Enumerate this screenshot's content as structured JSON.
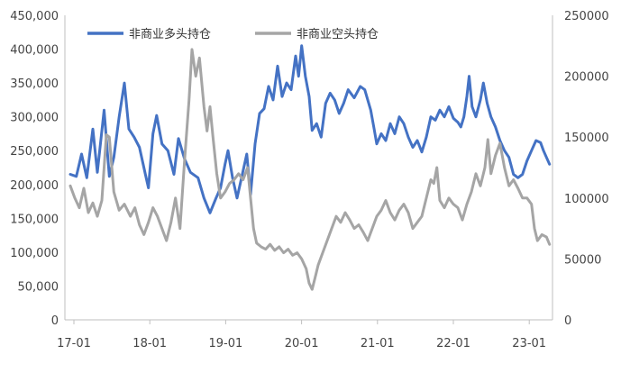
{
  "chart_data": {
    "type": "line",
    "title": "",
    "xlabel": "",
    "x_ticks": [
      "17-01",
      "18-01",
      "19-01",
      "20-01",
      "21-01",
      "22-01",
      "23-01"
    ],
    "left_axis": {
      "range": [
        0,
        450000
      ],
      "ticks": [
        "0",
        "50,000",
        "100,000",
        "150,000",
        "200,000",
        "250,000",
        "300,000",
        "350,000",
        "400,000",
        "450,000"
      ]
    },
    "right_axis": {
      "range": [
        0,
        250000
      ],
      "ticks": [
        "0",
        "50000",
        "100000",
        "150000",
        "200000",
        "250000"
      ]
    },
    "legend_position": "top-left",
    "grid": false,
    "series": [
      {
        "name": "非商业多头持仓",
        "axis": "left",
        "color": "#4472C4",
        "points": [
          [
            2017.0,
            215000
          ],
          [
            2017.08,
            212000
          ],
          [
            2017.15,
            245000
          ],
          [
            2017.22,
            210000
          ],
          [
            2017.3,
            282000
          ],
          [
            2017.36,
            218000
          ],
          [
            2017.45,
            310000
          ],
          [
            2017.52,
            212000
          ],
          [
            2017.58,
            240000
          ],
          [
            2017.65,
            300000
          ],
          [
            2017.72,
            350000
          ],
          [
            2017.78,
            282000
          ],
          [
            2017.85,
            270000
          ],
          [
            2017.92,
            255000
          ],
          [
            2018.0,
            215000
          ],
          [
            2018.04,
            195000
          ],
          [
            2018.1,
            275000
          ],
          [
            2018.15,
            302000
          ],
          [
            2018.22,
            260000
          ],
          [
            2018.3,
            250000
          ],
          [
            2018.38,
            215000
          ],
          [
            2018.44,
            268000
          ],
          [
            2018.52,
            238000
          ],
          [
            2018.6,
            218000
          ],
          [
            2018.7,
            210000
          ],
          [
            2018.78,
            180000
          ],
          [
            2018.86,
            158000
          ],
          [
            2018.94,
            180000
          ],
          [
            2019.0,
            195000
          ],
          [
            2019.06,
            230000
          ],
          [
            2019.1,
            250000
          ],
          [
            2019.16,
            210000
          ],
          [
            2019.22,
            180000
          ],
          [
            2019.28,
            210000
          ],
          [
            2019.35,
            245000
          ],
          [
            2019.4,
            185000
          ],
          [
            2019.46,
            260000
          ],
          [
            2019.52,
            305000
          ],
          [
            2019.58,
            312000
          ],
          [
            2019.64,
            345000
          ],
          [
            2019.7,
            325000
          ],
          [
            2019.76,
            375000
          ],
          [
            2019.82,
            330000
          ],
          [
            2019.88,
            350000
          ],
          [
            2019.94,
            340000
          ],
          [
            2020.0,
            390000
          ],
          [
            2020.04,
            360000
          ],
          [
            2020.08,
            405000
          ],
          [
            2020.13,
            360000
          ],
          [
            2020.18,
            330000
          ],
          [
            2020.22,
            280000
          ],
          [
            2020.28,
            290000
          ],
          [
            2020.34,
            270000
          ],
          [
            2020.4,
            320000
          ],
          [
            2020.46,
            335000
          ],
          [
            2020.52,
            325000
          ],
          [
            2020.58,
            305000
          ],
          [
            2020.64,
            320000
          ],
          [
            2020.7,
            340000
          ],
          [
            2020.78,
            328000
          ],
          [
            2020.86,
            345000
          ],
          [
            2020.92,
            340000
          ],
          [
            2021.0,
            310000
          ],
          [
            2021.04,
            285000
          ],
          [
            2021.08,
            260000
          ],
          [
            2021.14,
            275000
          ],
          [
            2021.2,
            265000
          ],
          [
            2021.26,
            290000
          ],
          [
            2021.32,
            275000
          ],
          [
            2021.38,
            300000
          ],
          [
            2021.44,
            290000
          ],
          [
            2021.5,
            270000
          ],
          [
            2021.56,
            255000
          ],
          [
            2021.62,
            265000
          ],
          [
            2021.68,
            248000
          ],
          [
            2021.74,
            270000
          ],
          [
            2021.8,
            300000
          ],
          [
            2021.86,
            295000
          ],
          [
            2021.92,
            310000
          ],
          [
            2021.98,
            300000
          ],
          [
            2022.04,
            315000
          ],
          [
            2022.1,
            298000
          ],
          [
            2022.16,
            292000
          ],
          [
            2022.2,
            285000
          ],
          [
            2022.24,
            300000
          ],
          [
            2022.28,
            330000
          ],
          [
            2022.31,
            360000
          ],
          [
            2022.35,
            315000
          ],
          [
            2022.4,
            300000
          ],
          [
            2022.46,
            325000
          ],
          [
            2022.5,
            350000
          ],
          [
            2022.55,
            320000
          ],
          [
            2022.6,
            300000
          ],
          [
            2022.66,
            285000
          ],
          [
            2022.72,
            265000
          ],
          [
            2022.78,
            250000
          ],
          [
            2022.84,
            240000
          ],
          [
            2022.9,
            215000
          ],
          [
            2022.96,
            210000
          ],
          [
            2023.02,
            215000
          ],
          [
            2023.08,
            235000
          ],
          [
            2023.14,
            250000
          ],
          [
            2023.2,
            265000
          ],
          [
            2023.26,
            262000
          ],
          [
            2023.3,
            250000
          ],
          [
            2023.34,
            240000
          ],
          [
            2023.38,
            230000
          ]
        ]
      },
      {
        "name": "非商业空头持仓",
        "axis": "right",
        "color": "#A5A5A5",
        "points": [
          [
            2017.0,
            110000
          ],
          [
            2017.06,
            100000
          ],
          [
            2017.12,
            92000
          ],
          [
            2017.18,
            108000
          ],
          [
            2017.24,
            88000
          ],
          [
            2017.3,
            96000
          ],
          [
            2017.36,
            85000
          ],
          [
            2017.42,
            98000
          ],
          [
            2017.48,
            152000
          ],
          [
            2017.52,
            150000
          ],
          [
            2017.58,
            105000
          ],
          [
            2017.65,
            90000
          ],
          [
            2017.72,
            95000
          ],
          [
            2017.8,
            85000
          ],
          [
            2017.86,
            92000
          ],
          [
            2017.92,
            78000
          ],
          [
            2017.98,
            70000
          ],
          [
            2018.04,
            80000
          ],
          [
            2018.1,
            92000
          ],
          [
            2018.16,
            85000
          ],
          [
            2018.22,
            75000
          ],
          [
            2018.28,
            65000
          ],
          [
            2018.34,
            80000
          ],
          [
            2018.4,
            100000
          ],
          [
            2018.46,
            75000
          ],
          [
            2018.52,
            130000
          ],
          [
            2018.58,
            180000
          ],
          [
            2018.62,
            222000
          ],
          [
            2018.67,
            200000
          ],
          [
            2018.72,
            215000
          ],
          [
            2018.78,
            175000
          ],
          [
            2018.82,
            155000
          ],
          [
            2018.86,
            175000
          ],
          [
            2018.9,
            150000
          ],
          [
            2018.95,
            120000
          ],
          [
            2019.0,
            100000
          ],
          [
            2019.06,
            105000
          ],
          [
            2019.12,
            112000
          ],
          [
            2019.18,
            115000
          ],
          [
            2019.24,
            120000
          ],
          [
            2019.3,
            115000
          ],
          [
            2019.36,
            125000
          ],
          [
            2019.4,
            100000
          ],
          [
            2019.44,
            75000
          ],
          [
            2019.48,
            63000
          ],
          [
            2019.54,
            60000
          ],
          [
            2019.6,
            58000
          ],
          [
            2019.66,
            62000
          ],
          [
            2019.72,
            57000
          ],
          [
            2019.78,
            60000
          ],
          [
            2019.84,
            55000
          ],
          [
            2019.9,
            58000
          ],
          [
            2019.96,
            53000
          ],
          [
            2020.02,
            55000
          ],
          [
            2020.08,
            50000
          ],
          [
            2020.14,
            42000
          ],
          [
            2020.18,
            30000
          ],
          [
            2020.22,
            25000
          ],
          [
            2020.26,
            35000
          ],
          [
            2020.3,
            45000
          ],
          [
            2020.36,
            55000
          ],
          [
            2020.42,
            65000
          ],
          [
            2020.48,
            75000
          ],
          [
            2020.54,
            85000
          ],
          [
            2020.6,
            80000
          ],
          [
            2020.66,
            88000
          ],
          [
            2020.72,
            82000
          ],
          [
            2020.78,
            75000
          ],
          [
            2020.84,
            78000
          ],
          [
            2020.9,
            72000
          ],
          [
            2020.96,
            65000
          ],
          [
            2021.02,
            75000
          ],
          [
            2021.08,
            85000
          ],
          [
            2021.14,
            90000
          ],
          [
            2021.2,
            98000
          ],
          [
            2021.26,
            88000
          ],
          [
            2021.32,
            82000
          ],
          [
            2021.38,
            90000
          ],
          [
            2021.44,
            95000
          ],
          [
            2021.5,
            88000
          ],
          [
            2021.56,
            75000
          ],
          [
            2021.62,
            80000
          ],
          [
            2021.68,
            85000
          ],
          [
            2021.74,
            100000
          ],
          [
            2021.8,
            115000
          ],
          [
            2021.84,
            112000
          ],
          [
            2021.88,
            125000
          ],
          [
            2021.92,
            98000
          ],
          [
            2021.98,
            92000
          ],
          [
            2022.04,
            100000
          ],
          [
            2022.1,
            95000
          ],
          [
            2022.16,
            92000
          ],
          [
            2022.22,
            82000
          ],
          [
            2022.28,
            95000
          ],
          [
            2022.34,
            105000
          ],
          [
            2022.4,
            120000
          ],
          [
            2022.46,
            110000
          ],
          [
            2022.52,
            125000
          ],
          [
            2022.56,
            148000
          ],
          [
            2022.6,
            120000
          ],
          [
            2022.66,
            135000
          ],
          [
            2022.72,
            145000
          ],
          [
            2022.78,
            125000
          ],
          [
            2022.84,
            110000
          ],
          [
            2022.9,
            115000
          ],
          [
            2022.96,
            108000
          ],
          [
            2023.02,
            100000
          ],
          [
            2023.08,
            100000
          ],
          [
            2023.14,
            95000
          ],
          [
            2023.18,
            75000
          ],
          [
            2023.22,
            65000
          ],
          [
            2023.28,
            70000
          ],
          [
            2023.34,
            68000
          ],
          [
            2023.38,
            62000
          ]
        ]
      }
    ]
  }
}
